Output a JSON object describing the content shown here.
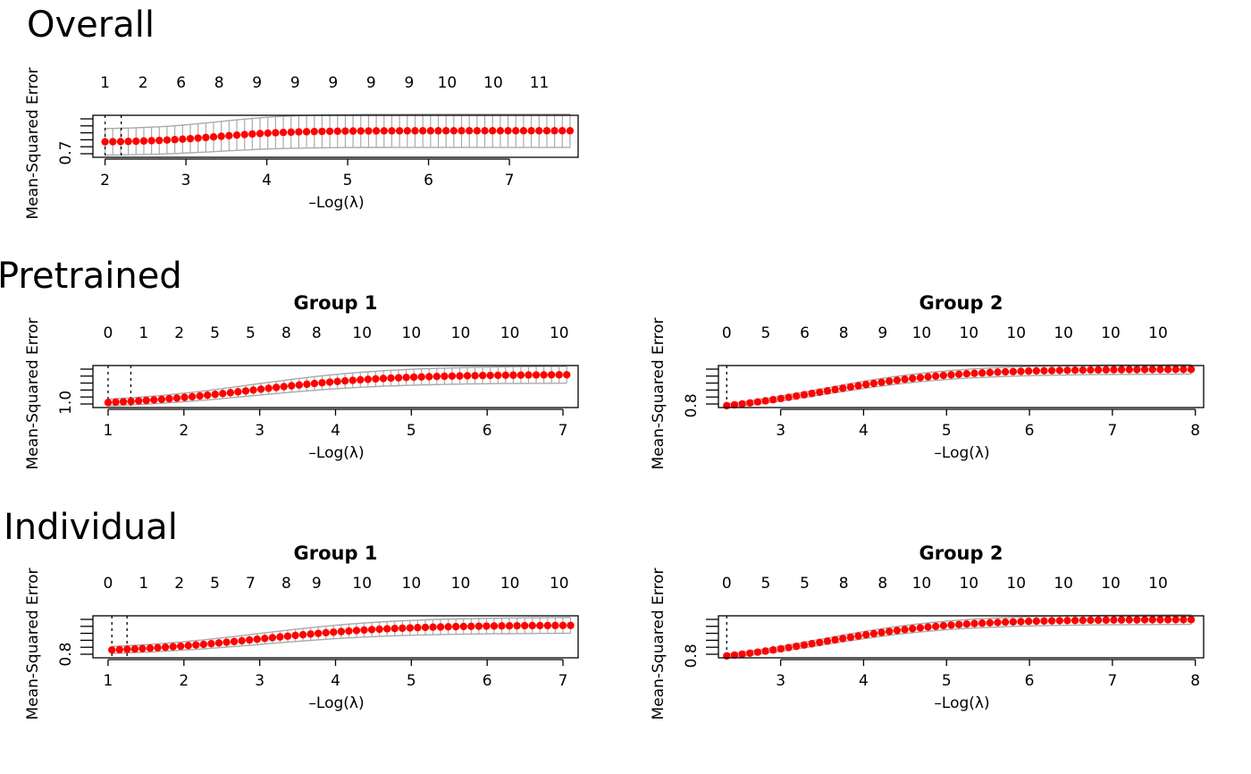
{
  "sections": [
    {
      "title": "Overall"
    },
    {
      "title": "Pretrained"
    },
    {
      "title": "Individual"
    }
  ],
  "colors": {
    "points": "#ff0000",
    "error_bars": "#aaaaaa",
    "frame": "#000000",
    "lambda_lines": "#000000"
  },
  "chart_data": [
    {
      "type": "scatter",
      "section": "Overall",
      "title": "",
      "xlabel": "–Log(λ)",
      "ylabel": "Mean-Squared Error",
      "xlim": [
        1.85,
        7.85
      ],
      "ylim": [
        0.66,
        1.04
      ],
      "xticks": [
        "2",
        "3",
        "4",
        "5",
        "6",
        "7"
      ],
      "yticks": [
        {
          "value": 0.7,
          "label": "0.7"
        }
      ],
      "top_axis_labels": [
        "1",
        "2",
        "6",
        "8",
        "9",
        "9",
        "9",
        "9",
        "9",
        "10",
        "10",
        "11"
      ],
      "top_axis_x": [
        2.0,
        2.47,
        2.94,
        3.41,
        3.88,
        4.35,
        4.82,
        5.29,
        5.76,
        6.23,
        6.8,
        7.37
      ],
      "lambda_lines": [
        2.0,
        2.2
      ],
      "x_range": [
        2.0,
        7.75
      ],
      "n_points": 61,
      "y_start": 0.8,
      "y_end": 0.9,
      "band_start": 0.12,
      "band_end": 0.15,
      "rise": 0.45,
      "mid": 3.4
    },
    {
      "type": "scatter",
      "section": "Pretrained",
      "title": "Group 1",
      "xlabel": "–Log(λ)",
      "ylabel": "Mean-Squared Error",
      "xlim": [
        0.8,
        7.2
      ],
      "ylim": [
        0.94,
        1.44
      ],
      "xticks": [
        "1",
        "2",
        "3",
        "4",
        "5",
        "6",
        "7"
      ],
      "yticks": [
        {
          "value": 1.0,
          "label": "1.0"
        }
      ],
      "top_axis_labels": [
        "0",
        "1",
        "2",
        "5",
        "5",
        "8",
        "8",
        "10",
        "10",
        "10",
        "10",
        "10"
      ],
      "top_axis_x": [
        1.0,
        1.47,
        1.94,
        2.41,
        2.88,
        3.35,
        3.75,
        4.35,
        5.0,
        5.65,
        6.3,
        6.95
      ],
      "lambda_lines": [
        1.0,
        1.3
      ],
      "x_range": [
        1.0,
        7.05
      ],
      "n_points": 61,
      "y_start": 1.0,
      "y_end": 1.33,
      "band_start": 0.04,
      "band_end": 0.1,
      "rise": 0.9,
      "mid": 2.9
    },
    {
      "type": "scatter",
      "section": "Pretrained",
      "title": "Group 2",
      "xlabel": "–Log(λ)",
      "ylabel": "Mean-Squared Error",
      "xlim": [
        2.25,
        8.1
      ],
      "ylim": [
        0.78,
        1.22
      ],
      "xticks": [
        "3",
        "4",
        "5",
        "6",
        "7",
        "8"
      ],
      "yticks": [
        {
          "value": 0.8,
          "label": "0.8"
        }
      ],
      "top_axis_labels": [
        "0",
        "5",
        "6",
        "8",
        "9",
        "10",
        "10",
        "10",
        "10",
        "10",
        "10"
      ],
      "top_axis_x": [
        2.35,
        2.82,
        3.29,
        3.76,
        4.23,
        4.7,
        5.27,
        5.84,
        6.41,
        6.98,
        7.55
      ],
      "lambda_lines": [
        2.35
      ],
      "x_range": [
        2.35,
        7.95
      ],
      "n_points": 61,
      "y_start": 0.8,
      "y_end": 1.18,
      "band_start": 0.02,
      "band_end": 0.05,
      "rise": 0.8,
      "mid": 3.5
    },
    {
      "type": "scatter",
      "section": "Individual",
      "title": "Group 1",
      "xlabel": "–Log(λ)",
      "ylabel": "Mean-Squared Error",
      "xlim": [
        0.8,
        7.2
      ],
      "ylim": [
        0.76,
        1.24
      ],
      "xticks": [
        "1",
        "2",
        "3",
        "4",
        "5",
        "6",
        "7"
      ],
      "yticks": [
        {
          "value": 0.8,
          "label": "0.8"
        }
      ],
      "top_axis_labels": [
        "0",
        "1",
        "2",
        "5",
        "7",
        "8",
        "9",
        "10",
        "10",
        "10",
        "10",
        "10"
      ],
      "top_axis_x": [
        1.0,
        1.47,
        1.94,
        2.41,
        2.88,
        3.35,
        3.75,
        4.35,
        5.0,
        5.65,
        6.3,
        6.95
      ],
      "lambda_lines": [
        1.05,
        1.25
      ],
      "x_range": [
        1.05,
        7.1
      ],
      "n_points": 61,
      "y_start": 0.85,
      "y_end": 1.13,
      "band_start": 0.04,
      "band_end": 0.09,
      "rise": 0.9,
      "mid": 3.0
    },
    {
      "type": "scatter",
      "section": "Individual",
      "title": "Group 2",
      "xlabel": "–Log(λ)",
      "ylabel": "Mean-Squared Error",
      "xlim": [
        2.25,
        8.1
      ],
      "ylim": [
        0.78,
        1.22
      ],
      "xticks": [
        "3",
        "4",
        "5",
        "6",
        "7",
        "8"
      ],
      "yticks": [
        {
          "value": 0.8,
          "label": "0.8"
        }
      ],
      "top_axis_labels": [
        "0",
        "5",
        "5",
        "8",
        "8",
        "10",
        "10",
        "10",
        "10",
        "10",
        "10"
      ],
      "top_axis_x": [
        2.35,
        2.82,
        3.29,
        3.76,
        4.23,
        4.7,
        5.27,
        5.84,
        6.41,
        6.98,
        7.55
      ],
      "lambda_lines": [
        2.35
      ],
      "x_range": [
        2.35,
        7.95
      ],
      "n_points": 61,
      "y_start": 0.8,
      "y_end": 1.18,
      "band_start": 0.02,
      "band_end": 0.05,
      "rise": 0.8,
      "mid": 3.5
    }
  ]
}
